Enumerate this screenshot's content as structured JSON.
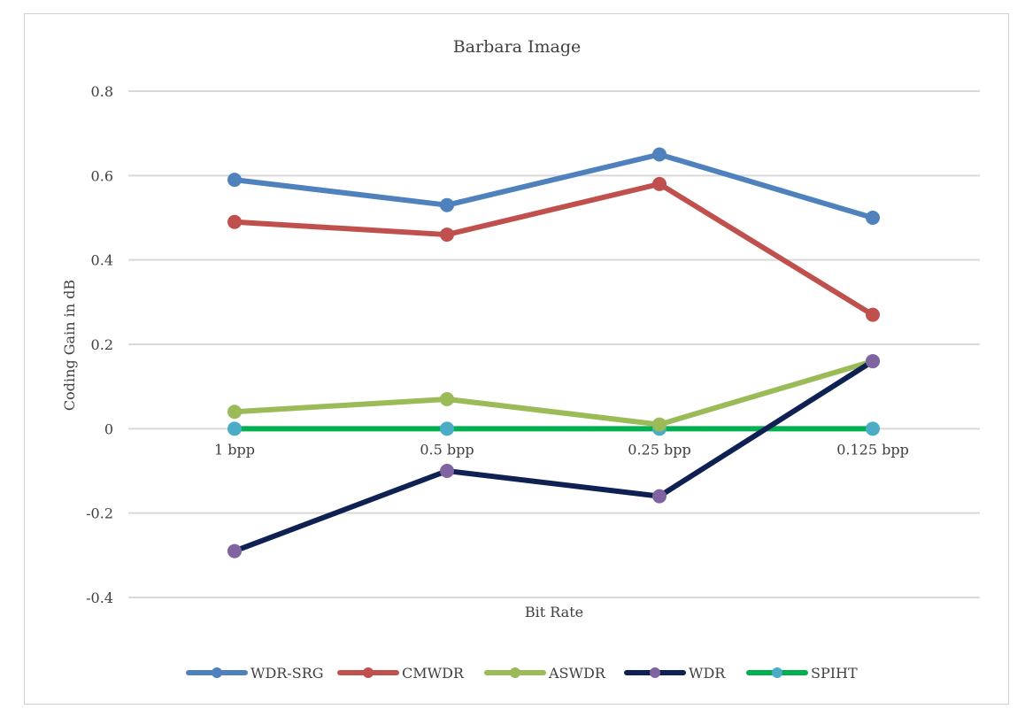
{
  "chart_data": {
    "type": "line",
    "title": "Barbara Image",
    "xlabel": "Bit Rate",
    "ylabel": "Coding Gain in dB",
    "categories": [
      "1 bpp",
      "0.5 bpp",
      "0.25 bpp",
      "0.125 bpp"
    ],
    "ylim": [
      -0.4,
      0.8
    ],
    "yticks": [
      0.8,
      0.6,
      0.4,
      0.2,
      0,
      -0.2,
      -0.4
    ],
    "ytick_labels": [
      "0.8",
      "0.6",
      "0.4",
      "0.2",
      "0",
      "-0.2",
      "-0.4"
    ],
    "grid": true,
    "legend_position": "bottom",
    "series": [
      {
        "name": "WDR-SRG",
        "values": [
          0.59,
          0.53,
          0.65,
          0.5
        ],
        "color": "#4f81bd",
        "marker": "#4f81bd"
      },
      {
        "name": "CMWDR",
        "values": [
          0.49,
          0.46,
          0.58,
          0.27
        ],
        "color": "#c0504d",
        "marker": "#c0504d"
      },
      {
        "name": "ASWDR",
        "values": [
          0.04,
          0.07,
          0.01,
          0.16
        ],
        "color": "#9bbb59",
        "marker": "#9bbb59"
      },
      {
        "name": "WDR",
        "values": [
          -0.29,
          -0.1,
          -0.16,
          0.16
        ],
        "color": "#0f2052",
        "marker": "#8064a2"
      },
      {
        "name": "SPIHT",
        "values": [
          0,
          0,
          0,
          0
        ],
        "color": "#00b050",
        "marker": "#4bacc6"
      }
    ]
  }
}
